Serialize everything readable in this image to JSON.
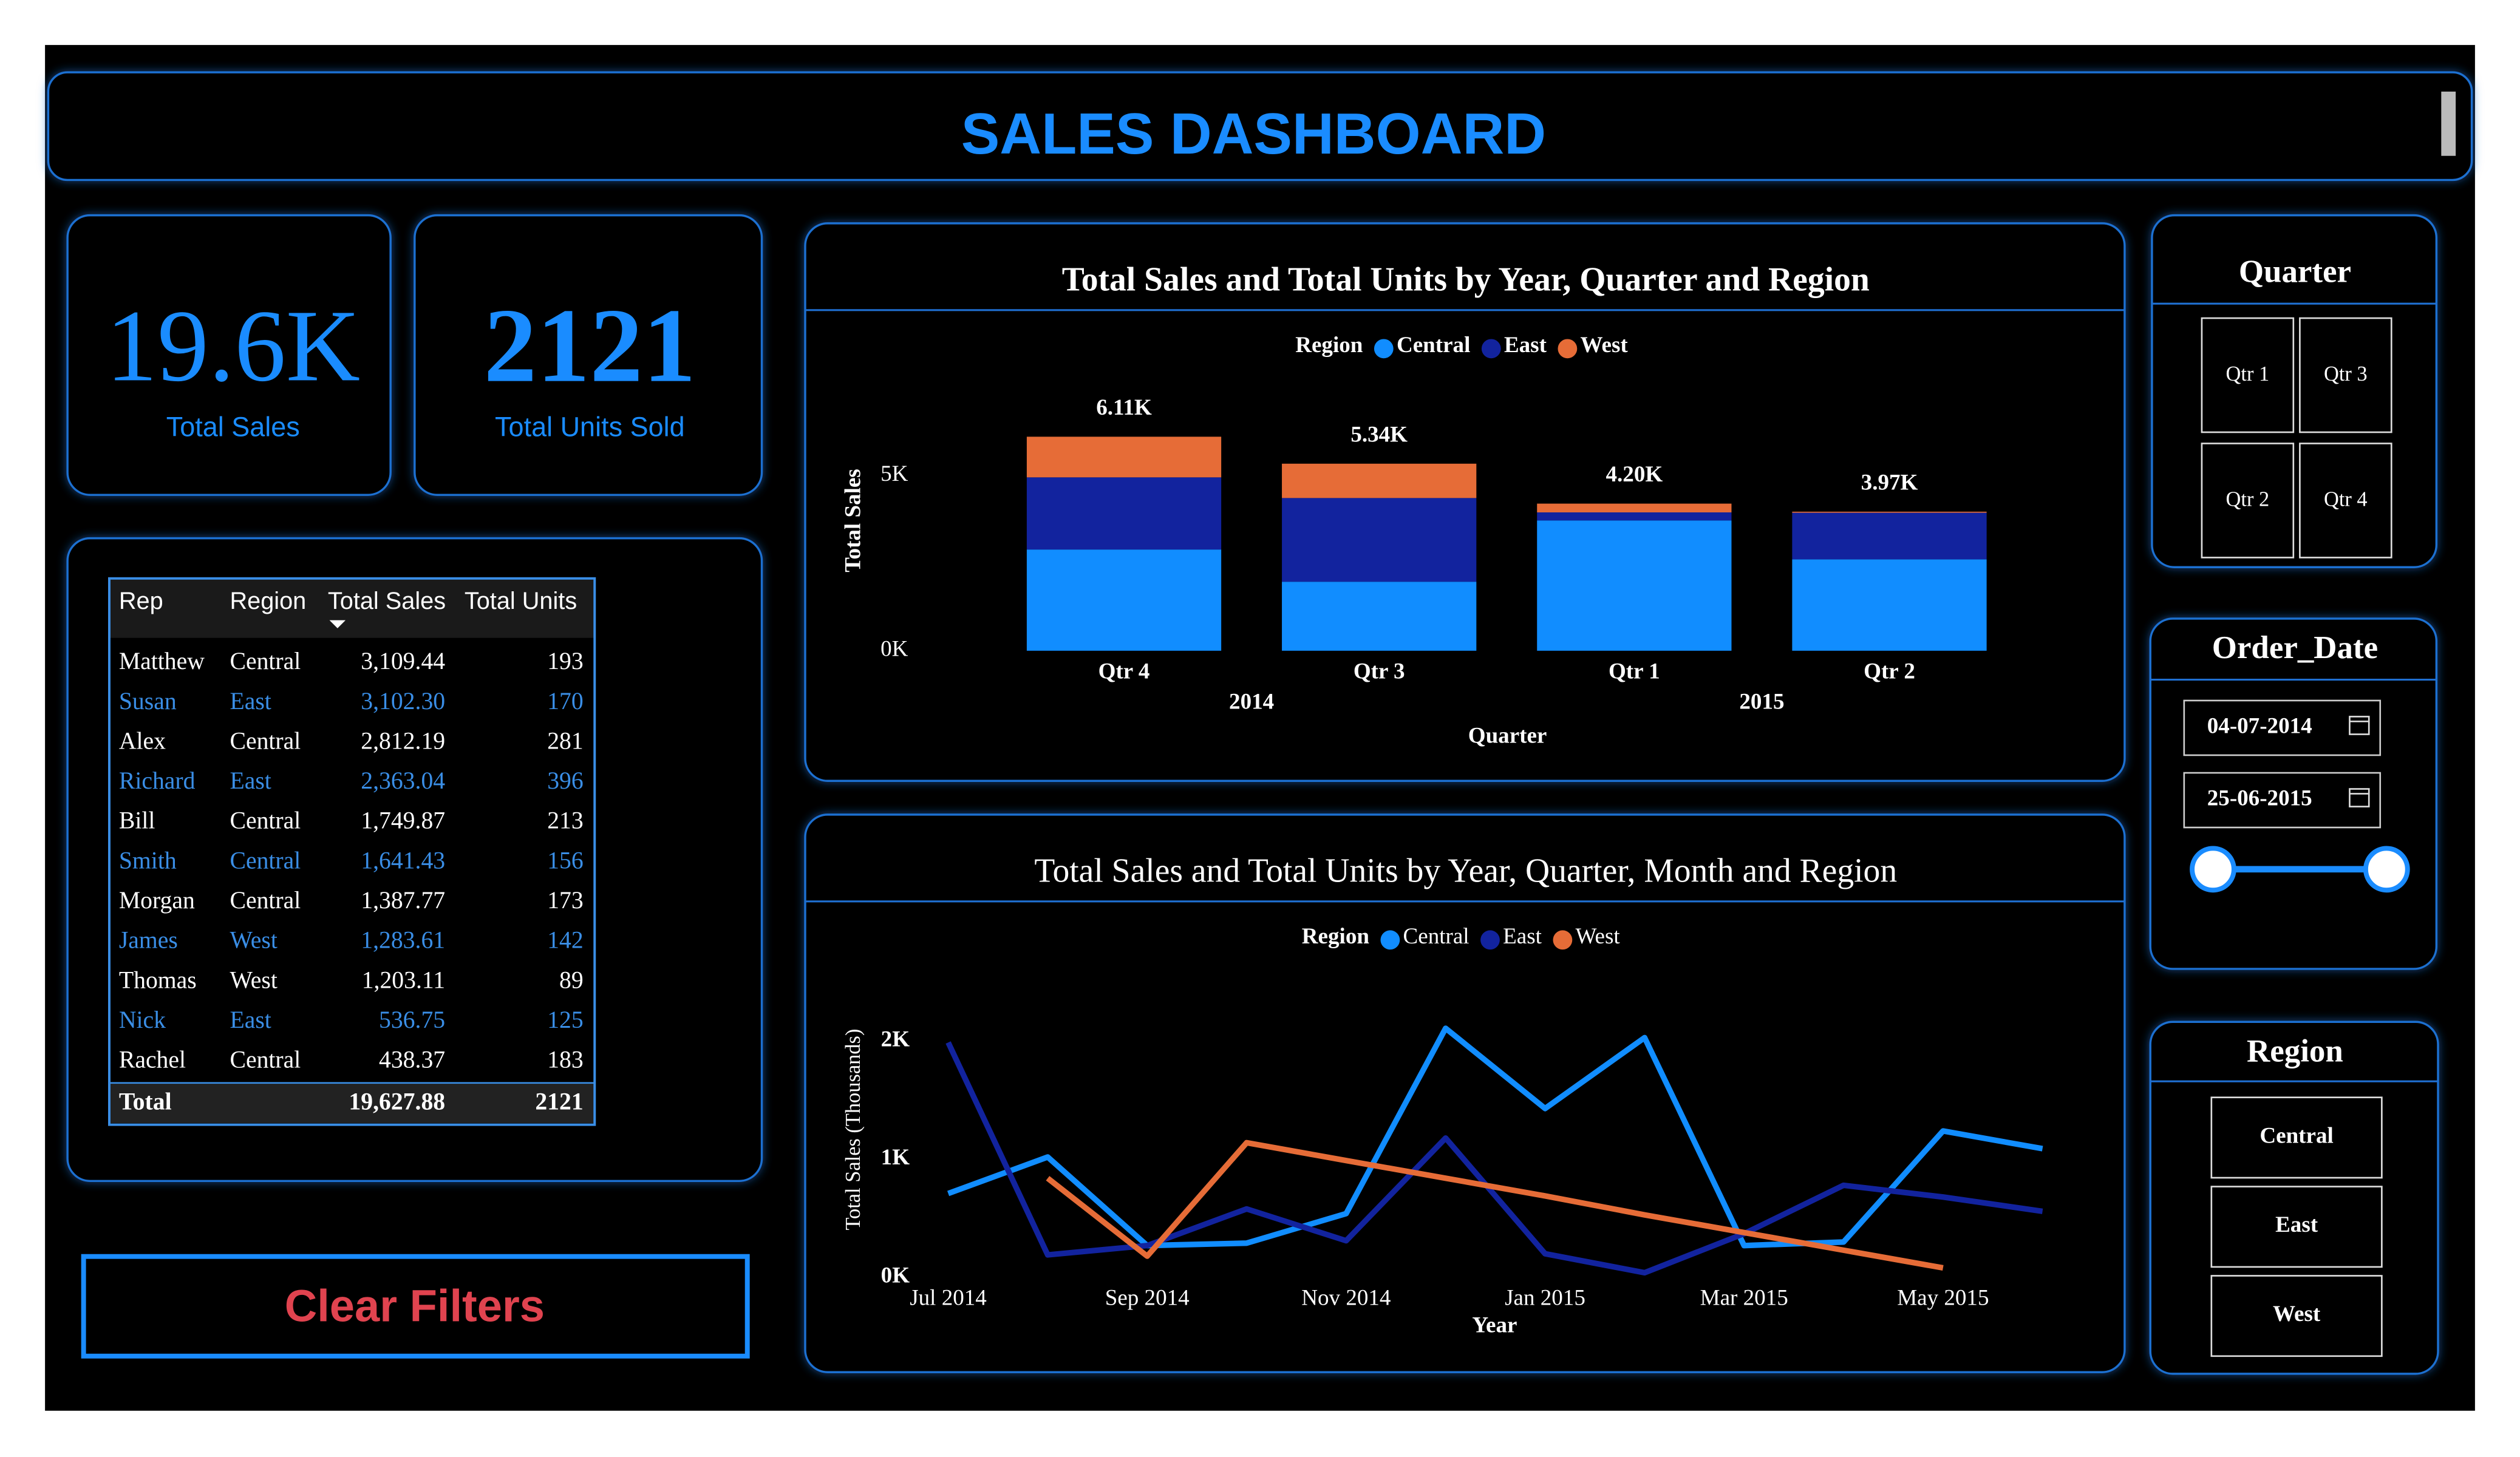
{
  "header": {
    "title": "SALES DASHBOARD"
  },
  "kpis": [
    {
      "value": "19.6K",
      "label": "Total Sales"
    },
    {
      "value": "2121",
      "label": "Total Units Sold"
    }
  ],
  "table": {
    "columns": [
      "Rep",
      "Region",
      "Total Sales",
      "Total Units"
    ],
    "rows": [
      [
        "Matthew",
        "Central",
        "3,109.44",
        "193"
      ],
      [
        "Susan",
        "East",
        "3,102.30",
        "170"
      ],
      [
        "Alex",
        "Central",
        "2,812.19",
        "281"
      ],
      [
        "Richard",
        "East",
        "2,363.04",
        "396"
      ],
      [
        "Bill",
        "Central",
        "1,749.87",
        "213"
      ],
      [
        "Smith",
        "Central",
        "1,641.43",
        "156"
      ],
      [
        "Morgan",
        "Central",
        "1,387.77",
        "173"
      ],
      [
        "James",
        "West",
        "1,283.61",
        "142"
      ],
      [
        "Thomas",
        "West",
        "1,203.11",
        "89"
      ],
      [
        "Nick",
        "East",
        "536.75",
        "125"
      ],
      [
        "Rachel",
        "Central",
        "438.37",
        "183"
      ]
    ],
    "total": [
      "Total",
      "19,627.88",
      "2121"
    ]
  },
  "chart_data": [
    {
      "type": "bar",
      "stacked": true,
      "title": "Total Sales and Total Units by Year, Quarter and Region",
      "legend_title": "Region",
      "xlabel": "Quarter",
      "ylabel": "Total Sales",
      "categories": [
        "Qtr 4",
        "Qtr 3",
        "Qtr 1",
        "Qtr 2"
      ],
      "groups": [
        {
          "label": "2014",
          "categories": [
            "Qtr 4",
            "Qtr 3"
          ]
        },
        {
          "label": "2015",
          "categories": [
            "Qtr 1",
            "Qtr 2"
          ]
        }
      ],
      "series": [
        {
          "name": "Central",
          "color": "#118dff",
          "values": [
            2890,
            1970,
            3720,
            2610
          ]
        },
        {
          "name": "East",
          "color": "#12239e",
          "values": [
            2060,
            2390,
            230,
            1330
          ]
        },
        {
          "name": "West",
          "color": "#e66c37",
          "values": [
            1160,
            980,
            250,
            30
          ]
        }
      ],
      "totals": [
        6110,
        5340,
        4200,
        3970
      ],
      "total_labels": [
        "6.11K",
        "5.34K",
        "4.20K",
        "3.97K"
      ],
      "ylim": [
        0,
        7000
      ],
      "yticks": [
        {
          "value": 0,
          "label": "0K"
        },
        {
          "value": 5000,
          "label": "5K"
        }
      ]
    },
    {
      "type": "line",
      "title": "Total Sales and Total Units by Year, Quarter, Month and Region",
      "legend_title": "Region",
      "xlabel": "Year",
      "ylabel": "Total Sales (Thousands)",
      "categories": [
        "Jul 2014",
        null,
        "Sep 2014",
        null,
        "Nov 2014",
        null,
        "Jan 2015",
        null,
        "Mar 2015",
        null,
        "May 2015",
        null
      ],
      "series": [
        {
          "name": "Central",
          "color": "#118dff",
          "values": [
            0.71,
            1.02,
            0.27,
            0.29,
            0.54,
            2.11,
            1.43,
            2.03,
            0.27,
            0.3,
            1.24,
            1.09
          ]
        },
        {
          "name": "East",
          "color": "#12239e",
          "values": [
            1.99,
            0.19,
            0.27,
            0.58,
            0.31,
            1.18,
            0.2,
            0.04,
            0.37,
            0.78,
            0.68,
            0.56
          ]
        },
        {
          "name": "West",
          "color": "#e66c37",
          "values": [
            null,
            0.84,
            0.18,
            1.14,
            0.99,
            0.84,
            0.69,
            0.53,
            0.38,
            0.23,
            0.08,
            null
          ]
        }
      ],
      "ylim": [
        0,
        2.3
      ],
      "yticks": [
        {
          "value": 0,
          "label": "0K"
        },
        {
          "value": 1,
          "label": "1K"
        },
        {
          "value": 2,
          "label": "2K"
        }
      ]
    }
  ],
  "slicers": {
    "quarter": {
      "title": "Quarter",
      "items": [
        "Qtr 1",
        "Qtr 3",
        "Qtr 2",
        "Qtr 4"
      ]
    },
    "order_date": {
      "title": "Order_Date",
      "start": "04-07-2014",
      "end": "25-06-2015"
    },
    "region": {
      "title": "Region",
      "items": [
        "Central",
        "East",
        "West"
      ]
    }
  },
  "button": {
    "label": "Clear Filters"
  }
}
